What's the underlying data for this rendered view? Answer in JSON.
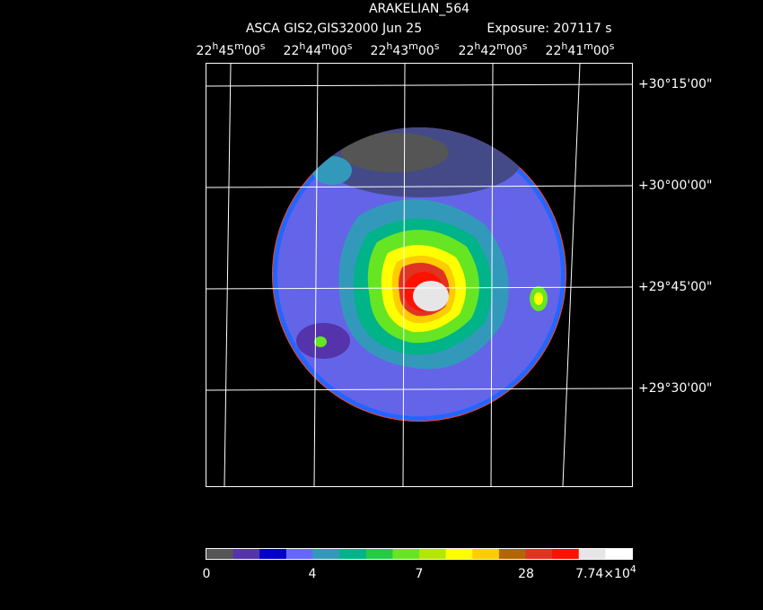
{
  "header": {
    "title": "ARAKELIAN_564",
    "instrument": "ASCA GIS2,GIS3",
    "date": "2000 Jun 25",
    "exposure": "Exposure: 207117 s"
  },
  "ra_labels": [
    [
      "22",
      "h",
      "45",
      "m",
      "00",
      "s"
    ],
    [
      "22",
      "h",
      "44",
      "m",
      "00",
      "s"
    ],
    [
      "22",
      "h",
      "43",
      "m",
      "00",
      "s"
    ],
    [
      "22",
      "h",
      "42",
      "m",
      "00",
      "s"
    ],
    [
      "22",
      "h",
      "41",
      "m",
      "00",
      "s"
    ]
  ],
  "dec_labels": [
    "+30°15'00\"",
    "+30°00'00\"",
    "+29°45'00\"",
    "+29°30'00\""
  ],
  "colorbar": {
    "colors": [
      "#555555",
      "#5533aa",
      "#0000cc",
      "#6666ff",
      "#3399bb",
      "#00b388",
      "#22cc44",
      "#66e622",
      "#b3e600",
      "#ffff00",
      "#ffcc00",
      "#b36600",
      "#e03322",
      "#ff1100",
      "#e6e6e6",
      "#ffffff"
    ],
    "labels": [
      [
        "0"
      ],
      [
        "4"
      ],
      [
        "7"
      ],
      [
        "28"
      ],
      [
        "7.74×10",
        "4"
      ]
    ]
  }
}
